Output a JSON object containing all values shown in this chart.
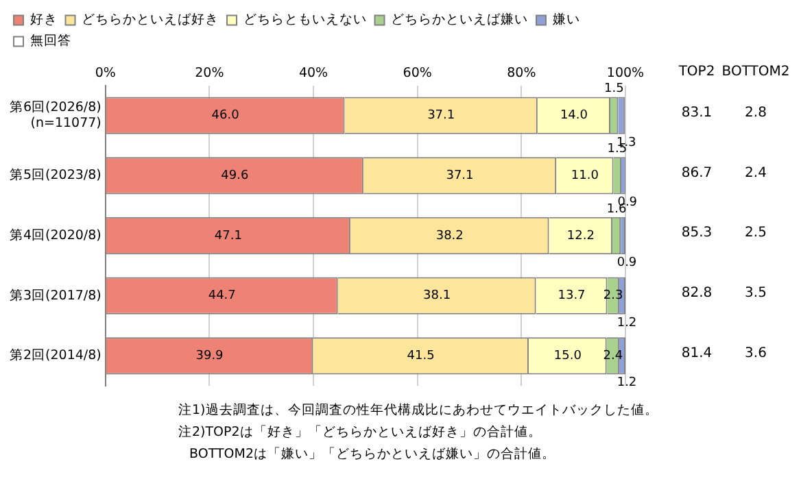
{
  "chart_data": {
    "type": "bar",
    "orientation": "horizontal",
    "stacked": true,
    "legend": "top",
    "grid": "x",
    "categories": [
      "第6回(2026/8)\n(n=11077)",
      "第5回(2023/8)",
      "第4回(2020/8)",
      "第3回(2017/8)",
      "第2回(2014/8)"
    ],
    "xlim": [
      0,
      100
    ],
    "xticks": [
      {
        "value": 0,
        "label": "0%"
      },
      {
        "value": 20,
        "label": "20%"
      },
      {
        "value": 40,
        "label": "40%"
      },
      {
        "value": 60,
        "label": "60%"
      },
      {
        "value": 80,
        "label": "80%"
      },
      {
        "value": 100,
        "label": "100%"
      }
    ],
    "series": [
      {
        "name": "好き",
        "color": "#ee8375",
        "values": [
          46.0,
          49.6,
          47.1,
          44.7,
          39.9
        ],
        "value_labels": [
          "46.0",
          "49.6",
          "47.1",
          "44.7",
          "39.9"
        ]
      },
      {
        "name": "どちらかといえば好き",
        "color": "#fde59c",
        "values": [
          37.1,
          37.1,
          38.2,
          38.1,
          41.5
        ],
        "value_labels": [
          "37.1",
          "37.1",
          "38.2",
          "38.1",
          "41.5"
        ]
      },
      {
        "name": "どちらともいえない",
        "color": "#ffffbf",
        "values": [
          14.0,
          11.0,
          12.2,
          13.7,
          15.0
        ],
        "value_labels": [
          "14.0",
          "11.0",
          "12.2",
          "13.7",
          "15.0"
        ]
      },
      {
        "name": "どちらかといえば嫌い",
        "color": "#a9d18e",
        "values": [
          1.5,
          1.5,
          1.6,
          2.3,
          2.4
        ],
        "value_labels": [
          "1.5",
          "1.5",
          "1.6",
          "2.3",
          "2.4"
        ]
      },
      {
        "name": "嫌い",
        "color": "#8f9fd8",
        "values": [
          1.3,
          0.9,
          0.9,
          1.2,
          1.2
        ],
        "value_labels": [
          "1.3",
          "0.9",
          "0.9",
          "1.2",
          "1.2"
        ]
      },
      {
        "name": "無回答",
        "color": "#ffffff",
        "values": [
          null,
          null,
          null,
          null,
          null
        ]
      }
    ],
    "annotations": [
      "TOP2",
      "BOTTOM2",
      "83.1",
      "2.8",
      "86.7",
      "2.4",
      "85.3",
      "2.5",
      "82.8",
      "3.5",
      "81.4",
      "3.6",
      "注1)過去調査は、今回調査の性年代構成比にあわせてウエイトバックした値。",
      "注2)TOP2は「好き」「どちらかといえば好き」の合計値。",
      "BOTTOM2は「嫌い」「どちらかといえば嫌い」の合計値。"
    ]
  }
}
